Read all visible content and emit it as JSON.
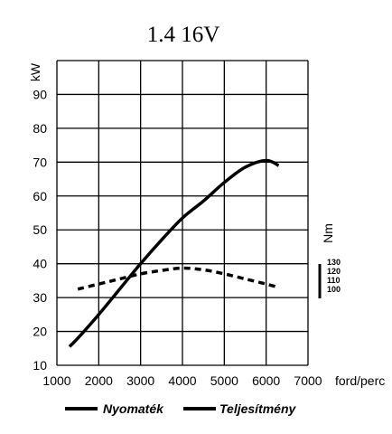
{
  "chart_data": {
    "type": "line",
    "title": "1.4 16V",
    "x_unit": "ford/perc",
    "xlim": [
      1000,
      7000
    ],
    "x_ticks": [
      1000,
      2000,
      3000,
      4000,
      5000,
      6000,
      7000
    ],
    "y_unit": "kW",
    "ylim": [
      10,
      100
    ],
    "y_ticks": [
      10,
      20,
      30,
      40,
      50,
      60,
      70,
      80,
      90
    ],
    "grid": true,
    "secondary_axis": {
      "unit": "Nm",
      "ticks": [
        130,
        120,
        110,
        100
      ]
    },
    "legend": {
      "placement": "bottom",
      "entries": [
        "Nyomaték",
        "Teljesítmény"
      ]
    },
    "series": [
      {
        "name": "Nyomaték",
        "style": "dashed",
        "x": [
          1500,
          2000,
          2500,
          3000,
          3500,
          4000,
          4500,
          5000,
          5500,
          6000,
          6300
        ],
        "y": [
          32.5,
          34,
          35.5,
          37,
          38,
          38.7,
          38.2,
          37,
          35.5,
          34,
          33
        ]
      },
      {
        "name": "Teljesítmény",
        "style": "solid",
        "x": [
          1300,
          1500,
          2000,
          2500,
          3000,
          3500,
          4000,
          4500,
          5000,
          5500,
          6000,
          6300
        ],
        "y": [
          15.5,
          18,
          25,
          32.5,
          40,
          47,
          53.5,
          58.5,
          64,
          68.5,
          70.5,
          69
        ]
      }
    ]
  }
}
